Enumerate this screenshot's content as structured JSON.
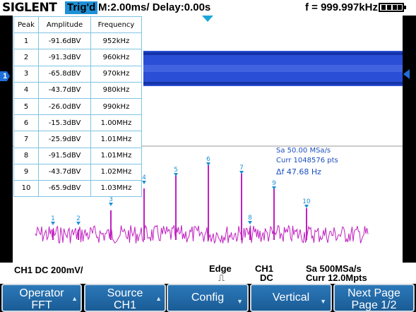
{
  "topbar": {
    "brand": "SIGLENT",
    "trigger_status": "Trig'd",
    "timebase": "M:2.00ms/ Delay:0.00s",
    "frequency": "f = 999.997kHz"
  },
  "peak_table": {
    "headers": [
      "Peak",
      "Amplitude",
      "Frequency"
    ],
    "rows": [
      [
        "1",
        "-91.6dBV",
        "952kHz"
      ],
      [
        "2",
        "-91.3dBV",
        "960kHz"
      ],
      [
        "3",
        "-65.8dBV",
        "970kHz"
      ],
      [
        "4",
        "-43.7dBV",
        "980kHz"
      ],
      [
        "5",
        "-26.0dBV",
        "990kHz"
      ],
      [
        "6",
        "-15.3dBV",
        "1.00MHz"
      ],
      [
        "7",
        "-25.9dBV",
        "1.01MHz"
      ],
      [
        "8",
        "-91.5dBV",
        "1.01MHz"
      ],
      [
        "9",
        "-43.7dBV",
        "1.02MHz"
      ],
      [
        "10",
        "-65.9dBV",
        "1.03MHz"
      ]
    ]
  },
  "fft_info": {
    "sample_rate": "Sa 50.00 MSa/s",
    "current_points": "Curr 1048576 pts",
    "delta_f": "Δf 47.68 Hz"
  },
  "peak_markers": [
    "1",
    "2",
    "3",
    "4",
    "5",
    "6",
    "7",
    "8",
    "9",
    "10"
  ],
  "channel_marker": "1",
  "infobar": {
    "channel": "CH1 DC 200mV/",
    "trigger_type": "Edge",
    "trigger_source": "CH1",
    "trigger_coupling": "DC",
    "sample_rate": "Sa 500MSa/s",
    "memory": "Curr 12.0Mpts"
  },
  "softkeys": [
    {
      "line1": "Operator",
      "line2": "FFT"
    },
    {
      "line1": "Source",
      "line2": "CH1"
    },
    {
      "line1": "Config",
      "line2": ""
    },
    {
      "line1": "Vertical",
      "line2": ""
    },
    {
      "line1": "Next Page",
      "line2": "Page 1/2"
    }
  ],
  "colors": {
    "trace_time": "#2a4fd6",
    "trace_fft": "#c020c0",
    "accent": "#1e90d6",
    "softkey": "#1f66a8"
  }
}
